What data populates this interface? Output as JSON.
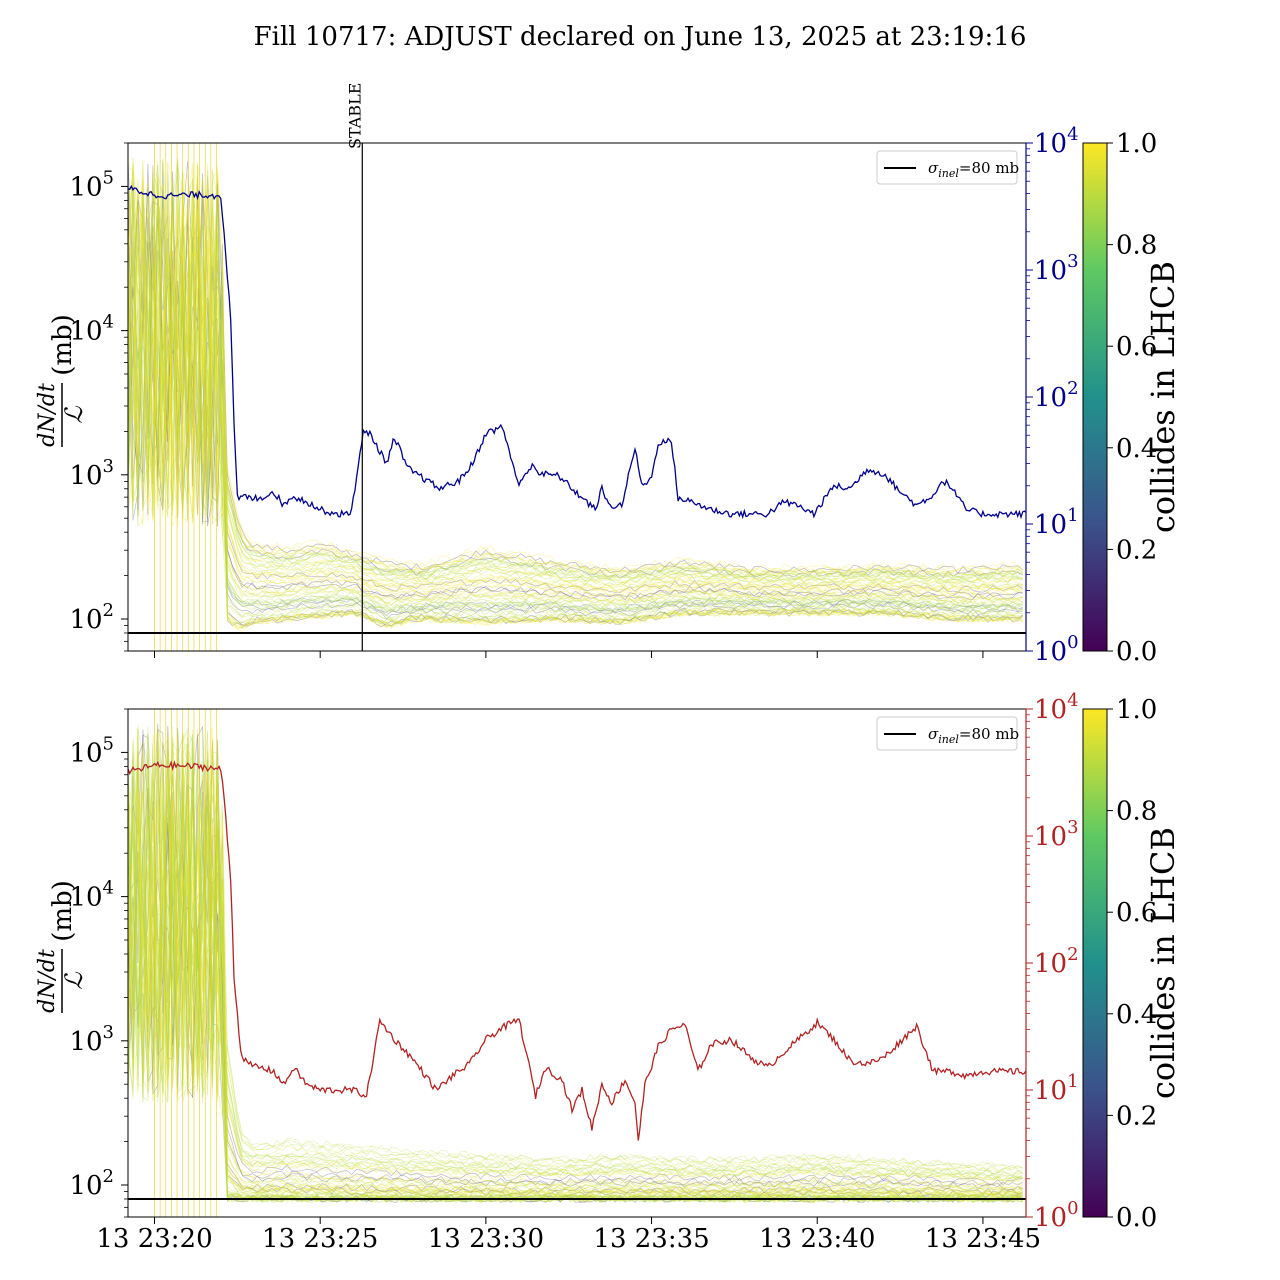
{
  "figure": {
    "title": "Fill 10717: ADJUST declared on June 13, 2025 at 23:19:16"
  },
  "colors": {
    "top_right_series": "#00008b",
    "bottom_right_series": "#b22222",
    "reference_line": "#000000",
    "colormap": [
      "#440154",
      "#3b528b",
      "#21918c",
      "#5ec962",
      "#fde725"
    ]
  },
  "chart_data": [
    {
      "type": "line",
      "panel": "top",
      "ylabel_numerator": "dN/dt",
      "ylabel_denominator": "ℒ",
      "ylabel_unit": "(mb)",
      "yscale": "log",
      "ylim": [
        60,
        200000
      ],
      "yticks": [
        100,
        1000,
        10000,
        100000
      ],
      "ytick_labels": [
        "10",
        "10",
        "10",
        "10"
      ],
      "ytick_exps": [
        "2",
        "3",
        "4",
        "5"
      ],
      "xlim_minutes": [
        -0.8,
        26.3
      ],
      "xtick_minutes": [
        0,
        5,
        10,
        15,
        20,
        25
      ],
      "xtick_labels": [],
      "right_axis": {
        "scale": "log",
        "ylim": [
          1,
          10000
        ],
        "ticks": [
          1,
          10,
          100,
          1000,
          10000
        ],
        "tick_labels": [
          "10",
          "10",
          "10",
          "10",
          "10"
        ],
        "tick_exps": [
          "0",
          "1",
          "2",
          "3",
          "4"
        ],
        "color": "#00008b",
        "series": {
          "x": [
            -0.8,
            0.0,
            0.5,
            1.0,
            1.5,
            2.0,
            2.1,
            2.3,
            2.4,
            2.5,
            2.6,
            2.7,
            2.8,
            3.2,
            3.6,
            3.9,
            4.2,
            4.3,
            4.6,
            5.0,
            5.5,
            5.9,
            6.0,
            6.3,
            6.5,
            7.0,
            7.2,
            7.4,
            7.6,
            8.0,
            8.6,
            9.2,
            9.6,
            10.0,
            10.5,
            11.0,
            11.4,
            11.6,
            12.2,
            12.8,
            13.3,
            13.5,
            13.7,
            14.1,
            14.5,
            14.7,
            15.0,
            15.2,
            15.6,
            15.8,
            16.2,
            16.8,
            17.4,
            17.9,
            18.5,
            19.0,
            19.4,
            19.9,
            20.5,
            21.0,
            21.5,
            22.0,
            22.5,
            23.0,
            23.5,
            23.8,
            24.0,
            24.5,
            25.0,
            25.5,
            26.0,
            26.3
          ],
          "y": [
            4400,
            3900,
            3850,
            3900,
            3900,
            3850,
            2000,
            400,
            60,
            16,
            16,
            17,
            16,
            16,
            18,
            14,
            17,
            16,
            15,
            13,
            12,
            12,
            16,
            52,
            52,
            30,
            45,
            40,
            28,
            24,
            19,
            22,
            30,
            52,
            58,
            20,
            30,
            25,
            24,
            17,
            13,
            19,
            14,
            14,
            40,
            20,
            23,
            44,
            45,
            16,
            15,
            13,
            12,
            12,
            12,
            15,
            14,
            12,
            20,
            19,
            27,
            25,
            18,
            14,
            17,
            22,
            20,
            13,
            12,
            12,
            12,
            12
          ]
        }
      },
      "reference": {
        "label": "σ_inel=80 mb",
        "label_sub": "inel",
        "label_value": "=80 mb",
        "value": 80
      },
      "vline": {
        "label": "STABLE",
        "x_minutes": 6.27
      },
      "colorbar": {
        "label": "collides in LHCB",
        "ticks": [
          "0.0",
          "0.2",
          "0.4",
          "0.6",
          "0.8",
          "1.0"
        ]
      },
      "bundle_description": "many per-bunch traces colored by collides fraction",
      "bundle_envelope_minutes": [
        0,
        2.0,
        2.2,
        2.6,
        3.0,
        4.0,
        5.0,
        6.0,
        7.0,
        8.0,
        10.0,
        12.0,
        14.0,
        16.0,
        18.0,
        20.0,
        22.0,
        24.0,
        26.0
      ],
      "bundle_upper": [
        160000,
        150000,
        1200,
        450,
        350,
        320,
        350,
        300,
        260,
        240,
        320,
        260,
        230,
        260,
        230,
        230,
        240,
        230,
        240
      ],
      "bundle_lower": [
        100,
        100,
        100,
        85,
        95,
        100,
        105,
        110,
        90,
        100,
        95,
        100,
        95,
        110,
        110,
        110,
        110,
        100,
        100
      ]
    },
    {
      "type": "line",
      "panel": "bottom",
      "ylabel_numerator": "dN/dt",
      "ylabel_denominator": "ℒ",
      "ylabel_unit": "(mb)",
      "yscale": "log",
      "ylim": [
        60,
        200000
      ],
      "yticks": [
        100,
        1000,
        10000,
        100000
      ],
      "ytick_labels": [
        "10",
        "10",
        "10",
        "10"
      ],
      "ytick_exps": [
        "2",
        "3",
        "4",
        "5"
      ],
      "xlim_minutes": [
        -0.8,
        26.3
      ],
      "xtick_minutes": [
        0,
        5,
        10,
        15,
        20,
        25
      ],
      "xtick_labels": [
        "13 23:20",
        "13 23:25",
        "13 23:30",
        "13 23:35",
        "13 23:40",
        "13 23:45"
      ],
      "right_axis": {
        "scale": "log",
        "ylim": [
          1,
          10000
        ],
        "ticks": [
          1,
          10,
          100,
          1000,
          10000
        ],
        "tick_labels": [
          "10",
          "10",
          "10",
          "10",
          "10"
        ],
        "tick_exps": [
          "0",
          "1",
          "2",
          "3",
          "4"
        ],
        "color": "#b22222",
        "series": {
          "x": [
            -0.8,
            0.0,
            0.5,
            1.0,
            1.5,
            2.0,
            2.1,
            2.3,
            2.4,
            2.5,
            2.6,
            2.8,
            3.2,
            3.6,
            3.9,
            4.2,
            4.6,
            5.0,
            5.5,
            6.0,
            6.4,
            6.8,
            7.3,
            7.6,
            8.0,
            8.5,
            9.0,
            9.5,
            10.0,
            10.5,
            11.0,
            11.5,
            11.8,
            12.3,
            12.6,
            12.9,
            13.2,
            13.5,
            13.8,
            14.2,
            14.5,
            14.6,
            14.8,
            15.2,
            15.6,
            16.0,
            16.4,
            16.8,
            17.4,
            18.0,
            18.5,
            19.0,
            19.5,
            20.0,
            20.5,
            21.0,
            21.5,
            22.0,
            22.5,
            23.0,
            23.5,
            23.8,
            24.0,
            24.5,
            25.0,
            25.5,
            26.0,
            26.3
          ],
          "y": [
            3200,
            3600,
            3600,
            3550,
            3500,
            3350,
            2000,
            450,
            80,
            40,
            20,
            16,
            15,
            14,
            11,
            15,
            11,
            10,
            10,
            10,
            9,
            35,
            24,
            20,
            15,
            10,
            13,
            16,
            25,
            31,
            36,
            9,
            15,
            12,
            7,
            10,
            5,
            11,
            8,
            12,
            8,
            4,
            11,
            22,
            30,
            33,
            14,
            23,
            25,
            18,
            15,
            20,
            26,
            34,
            25,
            17,
            16,
            18,
            24,
            32,
            14,
            14,
            14,
            13,
            14,
            14,
            14,
            14
          ]
        }
      },
      "reference": {
        "label": "σ_inel=80 mb",
        "label_sub": "inel",
        "label_value": "=80 mb",
        "value": 80
      },
      "colorbar": {
        "label": "collides in LHCB",
        "ticks": [
          "0.0",
          "0.2",
          "0.4",
          "0.6",
          "0.8",
          "1.0"
        ]
      },
      "bundle_description": "many per-bunch traces colored by collides fraction",
      "bundle_envelope_minutes": [
        0,
        2.0,
        2.2,
        2.6,
        3.0,
        4.0,
        6.0,
        8.0,
        10.0,
        12.0,
        14.0,
        16.0,
        18.0,
        20.0,
        22.0,
        24.0,
        26.0
      ],
      "bundle_upper": [
        160000,
        150000,
        1200,
        250,
        200,
        220,
        200,
        180,
        170,
        160,
        170,
        160,
        160,
        170,
        160,
        150,
        140
      ],
      "bundle_lower": [
        80,
        80,
        80,
        80,
        80,
        80,
        80,
        80,
        80,
        80,
        80,
        80,
        80,
        80,
        80,
        80,
        80
      ]
    }
  ]
}
